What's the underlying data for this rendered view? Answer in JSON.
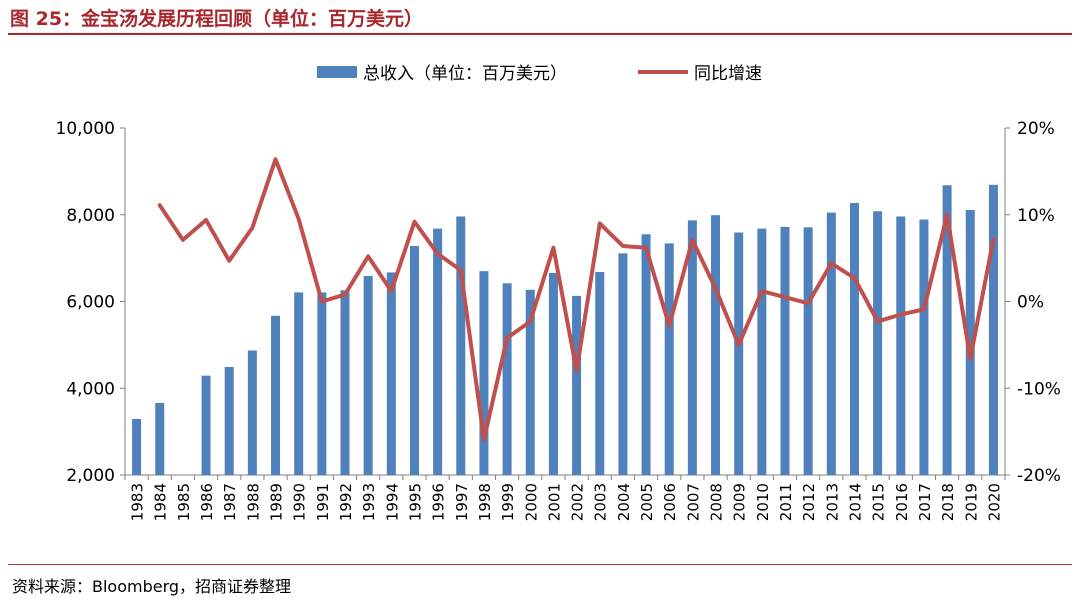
{
  "header": {
    "title": "图 25：金宝汤发展历程回顾（单位：百万美元）"
  },
  "footer": {
    "source": "资料来源：Bloomberg，招商证券整理"
  },
  "colors": {
    "bar": "#4f81bd",
    "line": "#c0504d",
    "accent": "#a8282d"
  },
  "chart_data": {
    "type": "bar",
    "categories": [
      "1983",
      "1984",
      "1985",
      "1986",
      "1987",
      "1988",
      "1989",
      "1990",
      "1991",
      "1992",
      "1993",
      "1994",
      "1995",
      "1996",
      "1997",
      "1998",
      "1999",
      "2000",
      "2001",
      "2002",
      "2003",
      "2004",
      "2005",
      "2006",
      "2007",
      "2008",
      "2009",
      "2010",
      "2011",
      "2012",
      "2013",
      "2014",
      "2015",
      "2016",
      "2017",
      "2018",
      "2019",
      "2020"
    ],
    "series": [
      {
        "name": "总收入（单位：百万美元）",
        "type": "bar",
        "axis": "left",
        "values": [
          3290,
          3660,
          null,
          4290,
          4490,
          4870,
          5670,
          6210,
          6210,
          6260,
          6590,
          6670,
          7280,
          7680,
          7960,
          6700,
          6420,
          6270,
          6660,
          6130,
          6680,
          7110,
          7550,
          7340,
          7870,
          7990,
          7590,
          7680,
          7720,
          7710,
          8050,
          8270,
          8080,
          7960,
          7890,
          8680,
          8110,
          8690
        ]
      },
      {
        "name": "同比增速",
        "type": "line",
        "axis": "right",
        "values": [
          null,
          11.1,
          7.1,
          9.4,
          4.7,
          8.5,
          16.4,
          9.5,
          0.0,
          0.8,
          5.2,
          1.2,
          9.2,
          5.5,
          3.6,
          -15.9,
          -4.2,
          -2.3,
          6.2,
          -8.0,
          9.0,
          6.4,
          6.2,
          -2.8,
          7.1,
          1.5,
          -5.0,
          1.2,
          0.5,
          -0.2,
          4.4,
          2.7,
          -2.3,
          -1.5,
          -0.9,
          10.0,
          -6.6,
          7.2
        ]
      }
    ],
    "left_axis": {
      "ylim": [
        2000,
        10000
      ],
      "ticks": [
        "2,000",
        "4,000",
        "6,000",
        "8,000",
        "10,000"
      ]
    },
    "right_axis": {
      "ylim": [
        -20,
        20
      ],
      "ticks": [
        "-20%",
        "-10%",
        "0%",
        "10%",
        "20%"
      ]
    },
    "legend": {
      "position": "top-center"
    },
    "grid": false
  }
}
